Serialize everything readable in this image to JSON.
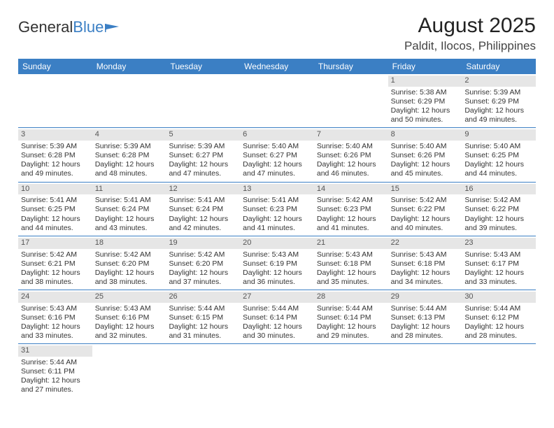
{
  "logo": {
    "text1": "General",
    "text2": "Blue"
  },
  "title": "August 2025",
  "location": "Paldit, Ilocos, Philippines",
  "day_headers": [
    "Sunday",
    "Monday",
    "Tuesday",
    "Wednesday",
    "Thursday",
    "Friday",
    "Saturday"
  ],
  "colors": {
    "header_bg": "#3b7fc4",
    "header_text": "#ffffff",
    "daynum_bg": "#e6e6e6",
    "row_border": "#3b7fc4",
    "text": "#333333"
  },
  "weeks": [
    [
      {
        "n": "",
        "empty": true
      },
      {
        "n": "",
        "empty": true
      },
      {
        "n": "",
        "empty": true
      },
      {
        "n": "",
        "empty": true
      },
      {
        "n": "",
        "empty": true
      },
      {
        "n": "1",
        "sr": "Sunrise: 5:38 AM",
        "ss": "Sunset: 6:29 PM",
        "d1": "Daylight: 12 hours",
        "d2": "and 50 minutes."
      },
      {
        "n": "2",
        "sr": "Sunrise: 5:39 AM",
        "ss": "Sunset: 6:29 PM",
        "d1": "Daylight: 12 hours",
        "d2": "and 49 minutes."
      }
    ],
    [
      {
        "n": "3",
        "sr": "Sunrise: 5:39 AM",
        "ss": "Sunset: 6:28 PM",
        "d1": "Daylight: 12 hours",
        "d2": "and 49 minutes."
      },
      {
        "n": "4",
        "sr": "Sunrise: 5:39 AM",
        "ss": "Sunset: 6:28 PM",
        "d1": "Daylight: 12 hours",
        "d2": "and 48 minutes."
      },
      {
        "n": "5",
        "sr": "Sunrise: 5:39 AM",
        "ss": "Sunset: 6:27 PM",
        "d1": "Daylight: 12 hours",
        "d2": "and 47 minutes."
      },
      {
        "n": "6",
        "sr": "Sunrise: 5:40 AM",
        "ss": "Sunset: 6:27 PM",
        "d1": "Daylight: 12 hours",
        "d2": "and 47 minutes."
      },
      {
        "n": "7",
        "sr": "Sunrise: 5:40 AM",
        "ss": "Sunset: 6:26 PM",
        "d1": "Daylight: 12 hours",
        "d2": "and 46 minutes."
      },
      {
        "n": "8",
        "sr": "Sunrise: 5:40 AM",
        "ss": "Sunset: 6:26 PM",
        "d1": "Daylight: 12 hours",
        "d2": "and 45 minutes."
      },
      {
        "n": "9",
        "sr": "Sunrise: 5:40 AM",
        "ss": "Sunset: 6:25 PM",
        "d1": "Daylight: 12 hours",
        "d2": "and 44 minutes."
      }
    ],
    [
      {
        "n": "10",
        "sr": "Sunrise: 5:41 AM",
        "ss": "Sunset: 6:25 PM",
        "d1": "Daylight: 12 hours",
        "d2": "and 44 minutes."
      },
      {
        "n": "11",
        "sr": "Sunrise: 5:41 AM",
        "ss": "Sunset: 6:24 PM",
        "d1": "Daylight: 12 hours",
        "d2": "and 43 minutes."
      },
      {
        "n": "12",
        "sr": "Sunrise: 5:41 AM",
        "ss": "Sunset: 6:24 PM",
        "d1": "Daylight: 12 hours",
        "d2": "and 42 minutes."
      },
      {
        "n": "13",
        "sr": "Sunrise: 5:41 AM",
        "ss": "Sunset: 6:23 PM",
        "d1": "Daylight: 12 hours",
        "d2": "and 41 minutes."
      },
      {
        "n": "14",
        "sr": "Sunrise: 5:42 AM",
        "ss": "Sunset: 6:23 PM",
        "d1": "Daylight: 12 hours",
        "d2": "and 41 minutes."
      },
      {
        "n": "15",
        "sr": "Sunrise: 5:42 AM",
        "ss": "Sunset: 6:22 PM",
        "d1": "Daylight: 12 hours",
        "d2": "and 40 minutes."
      },
      {
        "n": "16",
        "sr": "Sunrise: 5:42 AM",
        "ss": "Sunset: 6:22 PM",
        "d1": "Daylight: 12 hours",
        "d2": "and 39 minutes."
      }
    ],
    [
      {
        "n": "17",
        "sr": "Sunrise: 5:42 AM",
        "ss": "Sunset: 6:21 PM",
        "d1": "Daylight: 12 hours",
        "d2": "and 38 minutes."
      },
      {
        "n": "18",
        "sr": "Sunrise: 5:42 AM",
        "ss": "Sunset: 6:20 PM",
        "d1": "Daylight: 12 hours",
        "d2": "and 38 minutes."
      },
      {
        "n": "19",
        "sr": "Sunrise: 5:42 AM",
        "ss": "Sunset: 6:20 PM",
        "d1": "Daylight: 12 hours",
        "d2": "and 37 minutes."
      },
      {
        "n": "20",
        "sr": "Sunrise: 5:43 AM",
        "ss": "Sunset: 6:19 PM",
        "d1": "Daylight: 12 hours",
        "d2": "and 36 minutes."
      },
      {
        "n": "21",
        "sr": "Sunrise: 5:43 AM",
        "ss": "Sunset: 6:18 PM",
        "d1": "Daylight: 12 hours",
        "d2": "and 35 minutes."
      },
      {
        "n": "22",
        "sr": "Sunrise: 5:43 AM",
        "ss": "Sunset: 6:18 PM",
        "d1": "Daylight: 12 hours",
        "d2": "and 34 minutes."
      },
      {
        "n": "23",
        "sr": "Sunrise: 5:43 AM",
        "ss": "Sunset: 6:17 PM",
        "d1": "Daylight: 12 hours",
        "d2": "and 33 minutes."
      }
    ],
    [
      {
        "n": "24",
        "sr": "Sunrise: 5:43 AM",
        "ss": "Sunset: 6:16 PM",
        "d1": "Daylight: 12 hours",
        "d2": "and 33 minutes."
      },
      {
        "n": "25",
        "sr": "Sunrise: 5:43 AM",
        "ss": "Sunset: 6:16 PM",
        "d1": "Daylight: 12 hours",
        "d2": "and 32 minutes."
      },
      {
        "n": "26",
        "sr": "Sunrise: 5:44 AM",
        "ss": "Sunset: 6:15 PM",
        "d1": "Daylight: 12 hours",
        "d2": "and 31 minutes."
      },
      {
        "n": "27",
        "sr": "Sunrise: 5:44 AM",
        "ss": "Sunset: 6:14 PM",
        "d1": "Daylight: 12 hours",
        "d2": "and 30 minutes."
      },
      {
        "n": "28",
        "sr": "Sunrise: 5:44 AM",
        "ss": "Sunset: 6:14 PM",
        "d1": "Daylight: 12 hours",
        "d2": "and 29 minutes."
      },
      {
        "n": "29",
        "sr": "Sunrise: 5:44 AM",
        "ss": "Sunset: 6:13 PM",
        "d1": "Daylight: 12 hours",
        "d2": "and 28 minutes."
      },
      {
        "n": "30",
        "sr": "Sunrise: 5:44 AM",
        "ss": "Sunset: 6:12 PM",
        "d1": "Daylight: 12 hours",
        "d2": "and 28 minutes."
      }
    ],
    [
      {
        "n": "31",
        "sr": "Sunrise: 5:44 AM",
        "ss": "Sunset: 6:11 PM",
        "d1": "Daylight: 12 hours",
        "d2": "and 27 minutes."
      },
      {
        "n": "",
        "empty": true
      },
      {
        "n": "",
        "empty": true
      },
      {
        "n": "",
        "empty": true
      },
      {
        "n": "",
        "empty": true
      },
      {
        "n": "",
        "empty": true
      },
      {
        "n": "",
        "empty": true
      }
    ]
  ]
}
